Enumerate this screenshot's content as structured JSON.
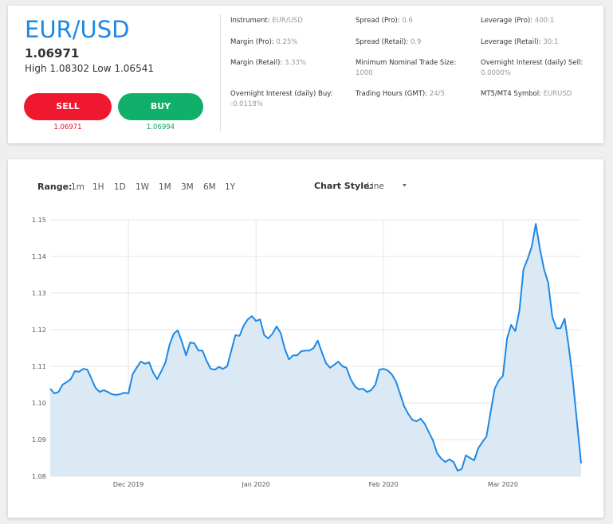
{
  "header": {
    "symbol": "EUR/USD",
    "price": "1.06971",
    "high_label": "High",
    "high": "1.08302",
    "low_label": "Low",
    "low": "1.06541",
    "sell": {
      "label": "SELL",
      "price": "1.06971"
    },
    "buy": {
      "label": "BUY",
      "price": "1.06994"
    }
  },
  "info": [
    {
      "label": "Instrument:",
      "value": "EUR/USD"
    },
    {
      "label": "Spread (Pro):",
      "value": "0.6"
    },
    {
      "label": "Leverage (Pro):",
      "value": "400:1"
    },
    {
      "label": "Margin (Pro):",
      "value": "0.25%"
    },
    {
      "label": "Spread (Retail):",
      "value": "0.9"
    },
    {
      "label": "Leverage (Retail):",
      "value": "30:1"
    },
    {
      "label": "Margin (Retail):",
      "value": "3.33%"
    },
    {
      "label": "Minimum Nominal Trade Size:",
      "value": "1000"
    },
    {
      "label": "Overnight Interest (daily) Sell:",
      "value": "0.0000%"
    },
    {
      "label": "Overnight Interest (daily) Buy:",
      "value": "-0.0118%"
    },
    {
      "label": "Trading Hours (GMT):",
      "value": "24/5"
    },
    {
      "label": "MT5/MT4 Symbol:",
      "value": "EURUSD"
    }
  ],
  "controls": {
    "range_label": "Range:",
    "ranges": [
      "1m",
      "1H",
      "1D",
      "1W",
      "1M",
      "3M",
      "6M",
      "1Y"
    ],
    "style_label": "Chart Style:",
    "style": "Line"
  },
  "chart_data": {
    "type": "area",
    "color": "#1e88e5",
    "fill": "#dbe9f5",
    "grid": true,
    "categories": [
      null,
      null,
      null,
      null,
      null,
      null,
      null,
      null,
      null,
      null,
      null,
      null,
      null,
      null,
      null,
      null,
      null,
      null,
      null,
      "Dec 2019",
      null,
      null,
      null,
      null,
      null,
      null,
      null,
      null,
      null,
      null,
      null,
      null,
      null,
      null,
      null,
      null,
      null,
      null,
      null,
      null,
      null,
      null,
      null,
      null,
      null,
      null,
      null,
      null,
      null,
      null,
      "Jan 2020",
      null,
      null,
      null,
      null,
      null,
      null,
      null,
      null,
      null,
      null,
      null,
      null,
      null,
      null,
      null,
      null,
      null,
      null,
      null,
      null,
      null,
      null,
      null,
      null,
      null,
      null,
      null,
      null,
      null,
      null,
      "Feb 2020",
      null,
      null,
      null,
      null,
      null,
      null,
      null,
      null,
      null,
      null,
      null,
      null,
      null,
      null,
      null,
      null,
      null,
      null,
      null,
      null,
      null,
      null,
      null,
      null,
      null,
      null,
      null,
      null,
      "Mar 2020",
      null,
      null,
      null,
      null,
      null,
      null,
      null,
      null,
      null,
      null,
      null,
      null,
      null,
      null,
      null,
      null,
      null,
      null,
      null
    ],
    "values": [
      1.1039,
      1.1026,
      1.103,
      1.105,
      1.1057,
      1.1065,
      1.1087,
      1.1085,
      1.1093,
      1.1091,
      1.1067,
      1.1041,
      1.103,
      1.1035,
      1.103,
      1.1024,
      1.1022,
      1.1024,
      1.1028,
      1.1026,
      1.1078,
      1.1096,
      1.1113,
      1.1107,
      1.1111,
      1.1083,
      1.1065,
      1.1087,
      1.1111,
      1.1159,
      1.1189,
      1.1198,
      1.1167,
      1.113,
      1.1165,
      1.1163,
      1.1143,
      1.1143,
      1.1115,
      1.1093,
      1.1091,
      1.1098,
      1.1093,
      1.11,
      1.1143,
      1.1185,
      1.1183,
      1.1211,
      1.1228,
      1.1237,
      1.1224,
      1.1228,
      1.1185,
      1.1176,
      1.1189,
      1.1209,
      1.1191,
      1.1148,
      1.1119,
      1.113,
      1.113,
      1.1141,
      1.1143,
      1.1143,
      1.115,
      1.117,
      1.1139,
      1.1109,
      1.1096,
      1.1104,
      1.1113,
      1.11,
      1.1096,
      1.1065,
      1.1046,
      1.1037,
      1.1039,
      1.103,
      1.1035,
      1.105,
      1.1091,
      1.1093,
      1.1089,
      1.1078,
      1.1059,
      1.1026,
      1.0991,
      1.097,
      1.0954,
      1.095,
      1.0957,
      1.0943,
      1.092,
      1.0898,
      1.0863,
      1.0848,
      1.0839,
      1.0846,
      1.0839,
      1.0815,
      1.082,
      1.0857,
      1.085,
      1.0843,
      1.0876,
      1.0893,
      1.0909,
      1.0974,
      1.1039,
      1.1061,
      1.1074,
      1.1176,
      1.1213,
      1.1196,
      1.1252,
      1.1365,
      1.1393,
      1.1426,
      1.1489,
      1.142,
      1.1365,
      1.1328,
      1.1235,
      1.1204,
      1.1204,
      1.123,
      1.1154,
      1.1061,
      1.0948,
      1.0835
    ],
    "ylim": [
      1.08,
      1.15
    ],
    "yticks": [
      1.08,
      1.09,
      {
        "value": 1.1,
        "label": "1.10"
      },
      1.11,
      1.12,
      1.13,
      1.14,
      1.15
    ]
  }
}
